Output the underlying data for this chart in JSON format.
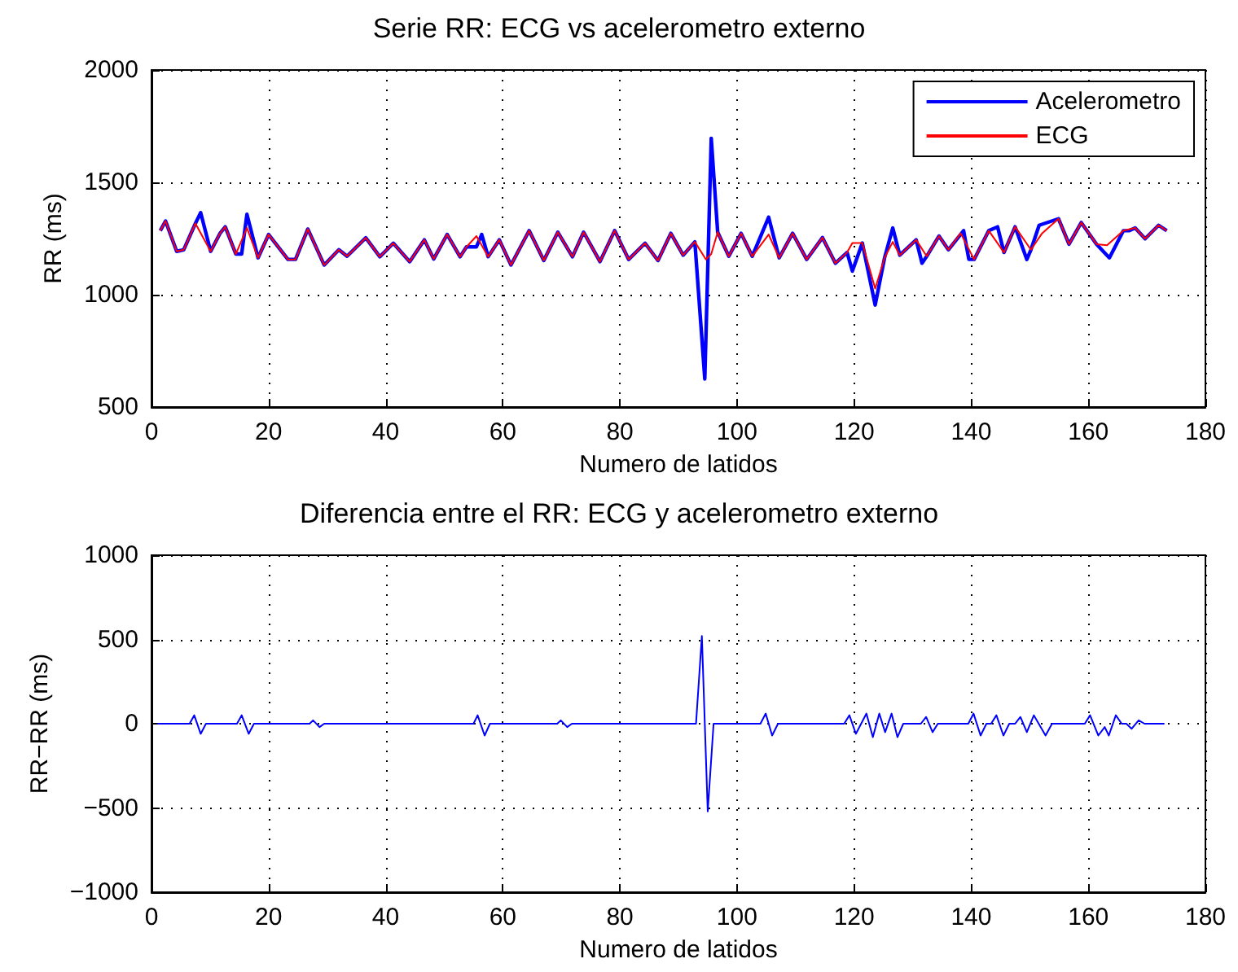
{
  "chart_data": [
    {
      "type": "line",
      "title": "Serie RR: ECG vs acelerometro externo",
      "xlabel": "Numero de latidos",
      "ylabel": "RR (ms)",
      "xlim": [
        0,
        180
      ],
      "xticks": [
        0,
        20,
        40,
        60,
        80,
        100,
        120,
        140,
        160,
        180
      ],
      "ylim": [
        500,
        2000
      ],
      "yticks": [
        500,
        1000,
        1500,
        2000
      ],
      "grid": true,
      "legend": "top right",
      "series": [
        {
          "name": "Acelerometro",
          "color": "#0000ff",
          "x": [
            1.5,
            2.4,
            4.3,
            5.5,
            7.5,
            8.4,
            10.1,
            11.7,
            12.6,
            14.4,
            15.4,
            16.3,
            18.2,
            20,
            23.3,
            24.6,
            26.7,
            29.5,
            32,
            33.4,
            36.6,
            39,
            41.3,
            44.1,
            46.6,
            48.2,
            50.5,
            52.7,
            53.8,
            55.5,
            56.4,
            57.5,
            59.4,
            61.4,
            64.5,
            67,
            69.4,
            71.9,
            73.8,
            76.6,
            79.1,
            81.5,
            84.3,
            86.5,
            88.7,
            90.8,
            92.8,
            94.5,
            95.6,
            96.7,
            98.6,
            100.7,
            102.6,
            105.4,
            107.2,
            109.5,
            111.9,
            114.6,
            116.8,
            118.8,
            119.7,
            121.4,
            123.6,
            125.2,
            126.6,
            127.8,
            130.6,
            131.6,
            132.4,
            134.5,
            136.1,
            138.7,
            139.6,
            140.5,
            143,
            144.5,
            145.6,
            147.5,
            149.5,
            150.2,
            151.6,
            154.9,
            156.7,
            158.8,
            161.4,
            163.6,
            166,
            167,
            168,
            169.7,
            172,
            173.4
          ],
          "values": [
            1285,
            1328,
            1193,
            1200,
            1317,
            1365,
            1193,
            1273,
            1302,
            1181,
            1181,
            1358,
            1164,
            1268,
            1157,
            1157,
            1292,
            1132,
            1200,
            1171,
            1253,
            1169,
            1229,
            1147,
            1244,
            1159,
            1268,
            1169,
            1213,
            1213,
            1268,
            1169,
            1244,
            1132,
            1285,
            1152,
            1278,
            1169,
            1278,
            1147,
            1285,
            1157,
            1229,
            1152,
            1273,
            1176,
            1235,
            625,
            1696,
            1278,
            1171,
            1273,
            1171,
            1345,
            1164,
            1273,
            1157,
            1254,
            1140,
            1188,
            1105,
            1230,
            954,
            1164,
            1297,
            1176,
            1244,
            1140,
            1171,
            1261,
            1200,
            1285,
            1157,
            1157,
            1285,
            1302,
            1188,
            1302,
            1157,
            1200,
            1309,
            1338,
            1225,
            1321,
            1225,
            1164,
            1285,
            1285,
            1297,
            1249,
            1309,
            1285
          ]
        },
        {
          "name": "ECG",
          "color": "#ff0000",
          "x": [
            1.5,
            2.4,
            4.3,
            5.5,
            7.5,
            10.1,
            11.7,
            12.6,
            14.4,
            16.3,
            18.2,
            20,
            23.3,
            24.6,
            26.7,
            29.5,
            32,
            33.4,
            36.6,
            39,
            41.3,
            44.1,
            46.6,
            48.2,
            50.5,
            52.7,
            53.8,
            55.5,
            57.5,
            59.4,
            61.4,
            64.5,
            67,
            69.4,
            71.9,
            73.8,
            76.6,
            79.1,
            81.5,
            84.3,
            86.5,
            88.7,
            90.8,
            92.8,
            94.7,
            95.6,
            96.7,
            98.6,
            100.7,
            102.6,
            105.4,
            107.2,
            109.5,
            111.9,
            114.6,
            116.8,
            118.8,
            119.7,
            121.4,
            123.6,
            125.2,
            126.6,
            127.8,
            130.6,
            132.4,
            134.5,
            136.1,
            138.2,
            140.5,
            143,
            145.6,
            147.5,
            150.2,
            152.1,
            154.9,
            156.7,
            158.8,
            161.4,
            163.2,
            166,
            168,
            169.7,
            172,
            173.4
          ],
          "values": [
            1285,
            1328,
            1193,
            1200,
            1317,
            1193,
            1273,
            1302,
            1181,
            1297,
            1164,
            1268,
            1157,
            1157,
            1292,
            1132,
            1200,
            1171,
            1253,
            1169,
            1229,
            1147,
            1244,
            1159,
            1268,
            1169,
            1213,
            1261,
            1169,
            1244,
            1132,
            1285,
            1152,
            1278,
            1169,
            1278,
            1147,
            1285,
            1157,
            1229,
            1152,
            1273,
            1176,
            1235,
            1157,
            1181,
            1278,
            1171,
            1273,
            1171,
            1268,
            1164,
            1273,
            1157,
            1254,
            1140,
            1188,
            1230,
            1230,
            1027,
            1164,
            1235,
            1176,
            1244,
            1171,
            1261,
            1200,
            1273,
            1157,
            1285,
            1188,
            1302,
            1200,
            1273,
            1338,
            1225,
            1321,
            1225,
            1220,
            1285,
            1297,
            1249,
            1309,
            1285
          ]
        }
      ]
    },
    {
      "type": "line",
      "title": "Diferencia entre el RR: ECG y acelerometro externo",
      "xlabel": "Numero de latidos",
      "ylabel": "RR−RR (ms)",
      "xlim": [
        0,
        180
      ],
      "xticks": [
        0,
        20,
        40,
        60,
        80,
        100,
        120,
        140,
        160,
        180
      ],
      "ylim": [
        -1000,
        1000
      ],
      "yticks": [
        {
          "value": -1000,
          "label": "−1000"
        },
        {
          "value": -500,
          "label": "−500"
        },
        0,
        500,
        1000
      ],
      "grid": true,
      "series": [
        {
          "color": "#0000ff",
          "x": [
            1,
            6.5,
            7.3,
            8.4,
            9.3,
            14.6,
            15.4,
            16.6,
            17.5,
            27,
            27.6,
            28.7,
            29.5,
            55,
            55.7,
            56.9,
            57.8,
            69.3,
            69.9,
            71,
            71.8,
            93,
            94,
            95,
            96,
            104,
            104.9,
            106,
            107,
            118.3,
            119.2,
            120.3,
            121.2,
            122.1,
            123.2,
            124.3,
            125.3,
            126.4,
            127.4,
            128.4,
            131.4,
            132.3,
            133.4,
            134.3,
            139.5,
            140.4,
            141.6,
            142.6,
            143.4,
            144.3,
            145.5,
            146.5,
            147.5,
            148.4,
            149.5,
            150.7,
            152.7,
            153.8,
            159.4,
            160.3,
            161.7,
            162.8,
            163.5,
            164.7,
            165.7,
            166.5,
            167.4,
            168.6,
            169.6,
            173
          ],
          "values": [
            0,
            0,
            50,
            -60,
            0,
            0,
            50,
            -60,
            0,
            0,
            20,
            -20,
            0,
            0,
            50,
            -70,
            0,
            0,
            20,
            -20,
            0,
            0,
            520,
            -520,
            0,
            0,
            60,
            -70,
            0,
            0,
            50,
            -60,
            0,
            60,
            -80,
            60,
            -50,
            60,
            -80,
            0,
            0,
            40,
            -50,
            0,
            0,
            60,
            -70,
            0,
            0,
            50,
            -70,
            0,
            0,
            40,
            -50,
            50,
            -70,
            0,
            0,
            50,
            -70,
            -20,
            -70,
            50,
            0,
            0,
            -30,
            20,
            0,
            0
          ]
        }
      ]
    }
  ]
}
